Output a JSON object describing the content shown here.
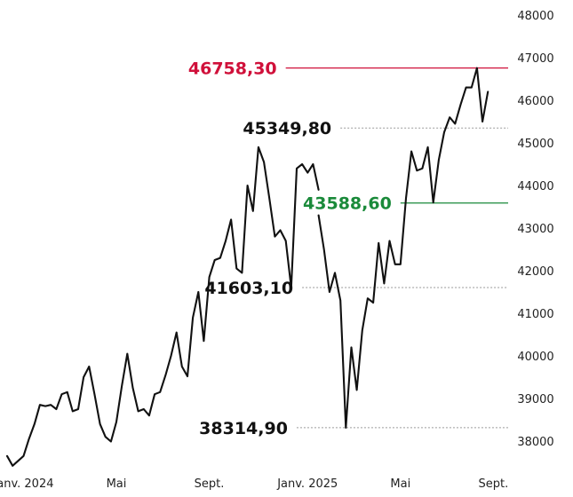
{
  "chart_data": {
    "type": "line",
    "title": "",
    "xlabel": "",
    "ylabel": "",
    "ylim": [
      37500,
      48000
    ],
    "yticks": [
      "48000",
      "47000",
      "46000",
      "45000",
      "44000",
      "43000",
      "42000",
      "41000",
      "40000",
      "39000",
      "38000"
    ],
    "xticks": [
      {
        "label": "Janv. 2024",
        "week": 3
      },
      {
        "label": "Mai",
        "week": 20
      },
      {
        "label": "Sept.",
        "week": 37
      },
      {
        "label": "Janv. 2025",
        "week": 55
      },
      {
        "label": "Mai",
        "week": 72
      },
      {
        "label": "Sept.",
        "week": 89
      }
    ],
    "series": [
      {
        "color": "#111111",
        "segments": [
          [
            [
              0,
              37650
            ],
            [
              1,
              37420
            ],
            [
              3,
              37650
            ],
            [
              4,
              38050
            ],
            [
              5,
              38400
            ],
            [
              6,
              38850
            ],
            [
              7,
              38820
            ],
            [
              8,
              38850
            ],
            [
              9,
              38750
            ],
            [
              10,
              39100
            ],
            [
              11,
              39150
            ],
            [
              12,
              38700
            ],
            [
              13,
              38750
            ],
            [
              14,
              39500
            ],
            [
              15,
              39750
            ],
            [
              16,
              39100
            ],
            [
              17,
              38400
            ],
            [
              18,
              38100
            ],
            [
              19,
              37990
            ],
            [
              20,
              38450
            ],
            [
              21,
              39300
            ],
            [
              22,
              40050
            ],
            [
              23,
              39250
            ],
            [
              24,
              38700
            ],
            [
              25,
              38750
            ],
            [
              26,
              38600
            ],
            [
              27,
              39100
            ],
            [
              28,
              39150
            ],
            [
              29,
              39550
            ],
            [
              30,
              40000
            ],
            [
              31,
              40550
            ],
            [
              32,
              39750
            ],
            [
              33,
              39520
            ],
            [
              34,
              40900
            ],
            [
              35,
              41500
            ],
            [
              36,
              40350
            ],
            [
              37,
              41850
            ],
            [
              38,
              42250
            ],
            [
              39,
              42300
            ],
            [
              40,
              42700
            ],
            [
              41,
              43200
            ],
            [
              42,
              42050
            ],
            [
              43,
              41950
            ],
            [
              44,
              44000
            ],
            [
              45,
              43400
            ],
            [
              46,
              44900
            ],
            [
              47,
              44550
            ],
            [
              48,
              43700
            ],
            [
              49,
              42800
            ],
            [
              50,
              42950
            ],
            [
              51,
              42700
            ],
            [
              52,
              41603.1
            ],
            [
              53,
              44400
            ],
            [
              54,
              44500
            ],
            [
              55,
              44300
            ],
            [
              56,
              44500
            ],
            [
              57,
              43900
            ]
          ],
          [
            [
              57,
              43300
            ],
            [
              58,
              42500
            ],
            [
              59,
              41500
            ],
            [
              60,
              41950
            ],
            [
              61,
              41300
            ],
            [
              62,
              38314.9
            ],
            [
              63,
              40200
            ],
            [
              64,
              39200
            ],
            [
              65,
              40600
            ],
            [
              66,
              41350
            ],
            [
              67,
              41250
            ],
            [
              68,
              42650
            ],
            [
              69,
              41700
            ],
            [
              70,
              42700
            ],
            [
              71,
              42150
            ],
            [
              72,
              42150
            ],
            [
              73,
              43700
            ],
            [
              74,
              44800
            ],
            [
              75,
              44350
            ],
            [
              76,
              44400
            ],
            [
              77,
              44900
            ],
            [
              78,
              43600
            ],
            [
              79,
              44600
            ],
            [
              80,
              45250
            ],
            [
              81,
              45600
            ],
            [
              82,
              45450
            ],
            [
              83,
              45900
            ],
            [
              84,
              46300
            ],
            [
              85,
              46300
            ],
            [
              86,
              46758.3
            ],
            [
              87,
              45500
            ],
            [
              88,
              46200
            ]
          ]
        ]
      }
    ],
    "annotations": [
      {
        "text": "46758,30",
        "value": 46758.3,
        "color": "#d0103a",
        "style": "solid",
        "line_from_week": 51
      },
      {
        "text": "45349,80",
        "value": 45349.8,
        "color": "#111111",
        "style": "dotted",
        "line_from_week": 61
      },
      {
        "text": "43588,60",
        "value": 43588.6,
        "color": "#1a8a3a",
        "style": "solid",
        "line_from_week": 72
      },
      {
        "text": "41603,10",
        "value": 41603.1,
        "color": "#111111",
        "style": "dotted",
        "line_from_week": 54
      },
      {
        "text": "38314,90",
        "value": 38314.9,
        "color": "#111111",
        "style": "dotted",
        "line_from_week": 53
      }
    ],
    "grid": false,
    "legend": "none"
  }
}
